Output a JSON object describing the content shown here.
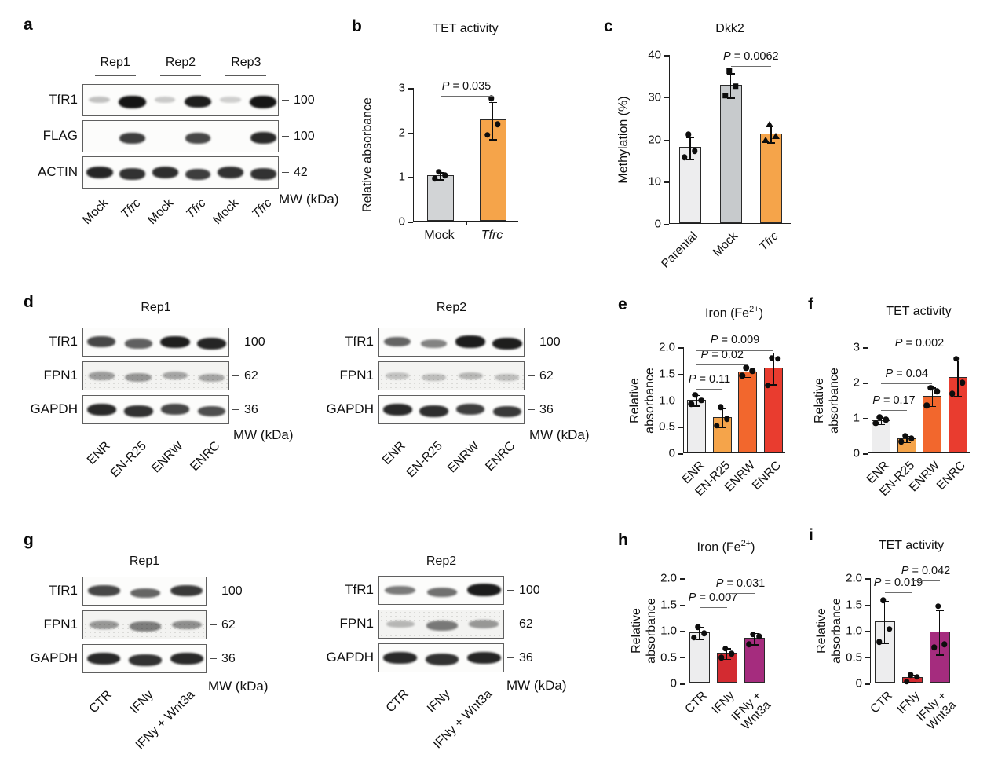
{
  "panels": {
    "a": "a",
    "b": "b",
    "c": "c",
    "d": "d",
    "e": "e",
    "f": "f",
    "g": "g",
    "h": "h",
    "i": "i"
  },
  "colors": {
    "bar_light_gray": "#ededee",
    "bar_gray": "#d2d4d6",
    "bar_mid_gray": "#c7cacc",
    "bar_orange": "#f5a44a",
    "bar_dark_orange": "#f2672d",
    "bar_red": "#e93c2f",
    "bar_crimson": "#d32b31",
    "bar_magenta": "#a52c7e"
  },
  "blots": {
    "a": {
      "groups": [
        "Rep1",
        "Rep2",
        "Rep3"
      ],
      "lanes": [
        {
          "label": "Mock",
          "italic": false
        },
        {
          "label": "Tfrc",
          "italic": true
        },
        {
          "label": "Mock",
          "italic": false
        },
        {
          "label": "Tfrc",
          "italic": true
        },
        {
          "label": "Mock",
          "italic": false
        },
        {
          "label": "Tfrc",
          "italic": true
        }
      ],
      "rows": [
        {
          "label": "TfR1",
          "mw": "100",
          "noisy": false,
          "bands": [
            0.15,
            1,
            0.1,
            0.95,
            0.08,
            1
          ]
        },
        {
          "label": "FLAG",
          "mw": "100",
          "noisy": false,
          "bands": [
            0,
            0.8,
            0,
            0.75,
            0,
            0.9
          ]
        },
        {
          "label": "ACTIN",
          "mw": "42",
          "noisy": false,
          "bands": [
            0.92,
            0.85,
            0.88,
            0.8,
            0.85,
            0.85
          ]
        }
      ],
      "mw_label": "MW (kDa)"
    },
    "d1": {
      "title": "Rep1",
      "lanes": [
        {
          "label": "ENR"
        },
        {
          "label": "EN-R25"
        },
        {
          "label": "ENRW"
        },
        {
          "label": "ENRC"
        }
      ],
      "rows": [
        {
          "label": "TfR1",
          "mw": "100",
          "noisy": false,
          "bands": [
            0.75,
            0.62,
            0.95,
            0.92
          ]
        },
        {
          "label": "FPN1",
          "mw": "62",
          "noisy": true,
          "bands": [
            0.42,
            0.46,
            0.36,
            0.36
          ]
        },
        {
          "label": "GAPDH",
          "mw": "36",
          "noisy": false,
          "bands": [
            0.9,
            0.85,
            0.75,
            0.72
          ]
        }
      ],
      "mw_label": "MW (kDa)"
    },
    "d2": {
      "title": "Rep2",
      "lanes": [
        {
          "label": "ENR"
        },
        {
          "label": "EN-R25"
        },
        {
          "label": "ENRW"
        },
        {
          "label": "ENRC"
        }
      ],
      "rows": [
        {
          "label": "TfR1",
          "mw": "100",
          "noisy": false,
          "bands": [
            0.6,
            0.45,
            0.97,
            0.95
          ]
        },
        {
          "label": "FPN1",
          "mw": "62",
          "noisy": true,
          "bands": [
            0.18,
            0.2,
            0.25,
            0.2
          ]
        },
        {
          "label": "GAPDH",
          "mw": "36",
          "noisy": false,
          "bands": [
            0.9,
            0.88,
            0.8,
            0.82
          ]
        }
      ],
      "mw_label": "MW (kDa)"
    },
    "g1": {
      "title": "Rep1",
      "lanes": [
        {
          "label": "CTR"
        },
        {
          "label": "IFNy"
        },
        {
          "label": "IFNy + Wnt3a"
        }
      ],
      "rows": [
        {
          "label": "TfR1",
          "mw": "100",
          "noisy": false,
          "bands": [
            0.75,
            0.6,
            0.82
          ]
        },
        {
          "label": "FPN1",
          "mw": "62",
          "noisy": true,
          "bands": [
            0.45,
            0.62,
            0.5
          ]
        },
        {
          "label": "GAPDH",
          "mw": "36",
          "noisy": false,
          "bands": [
            0.9,
            0.85,
            0.9
          ]
        }
      ],
      "mw_label": "MW (kDa)"
    },
    "g2": {
      "title": "Rep2",
      "lanes": [
        {
          "label": "CTR"
        },
        {
          "label": "IFNy"
        },
        {
          "label": "IFNy + Wnt3a"
        }
      ],
      "rows": [
        {
          "label": "TfR1",
          "mw": "100",
          "noisy": false,
          "bands": [
            0.5,
            0.55,
            0.97
          ]
        },
        {
          "label": "FPN1",
          "mw": "62",
          "noisy": true,
          "bands": [
            0.25,
            0.65,
            0.45
          ]
        },
        {
          "label": "GAPDH",
          "mw": "36",
          "noisy": false,
          "bands": [
            0.9,
            0.85,
            0.92
          ]
        }
      ],
      "mw_label": "MW (kDa)"
    }
  },
  "chart_data": [
    {
      "id": "b",
      "type": "bar",
      "title": "TET activity",
      "ylabel": "Relative absorbance",
      "ylim": [
        0,
        3
      ],
      "yticks": [
        {
          "v": 0,
          "label": "0"
        },
        {
          "v": 1,
          "label": "1"
        },
        {
          "v": 2,
          "label": "2"
        },
        {
          "v": 3,
          "label": "3"
        }
      ],
      "categories": [
        {
          "label": "Mock",
          "italic": false
        },
        {
          "label": "Tfrc",
          "italic": true
        }
      ],
      "values": [
        1.03,
        2.27
      ],
      "errors": [
        0.08,
        0.42
      ],
      "points": [
        [
          0.97,
          1.04,
          1.12
        ],
        [
          1.95,
          2.18,
          2.77
        ]
      ],
      "colors": [
        "#d2d4d6",
        "#f5a44a"
      ],
      "pvalues": [
        {
          "label": "P = 0.035",
          "i1": 0,
          "i2": 1,
          "y": 2.82
        }
      ],
      "rotate_labels": 0,
      "legend": "none",
      "grid": false
    },
    {
      "id": "c",
      "type": "bar",
      "title": "Dkk2",
      "ylabel": "Methylation (%)",
      "ylim": [
        0,
        40
      ],
      "yticks": [
        {
          "v": 0,
          "label": "0"
        },
        {
          "v": 10,
          "label": "10"
        },
        {
          "v": 20,
          "label": "20"
        },
        {
          "v": 30,
          "label": "30"
        },
        {
          "v": 40,
          "label": "40"
        }
      ],
      "categories": [
        {
          "label": "Parental",
          "italic": false
        },
        {
          "label": "Mock",
          "italic": false
        },
        {
          "label": "Tfrc",
          "italic": true
        }
      ],
      "values": [
        18,
        32.8,
        21.3
      ],
      "errors": [
        2.6,
        2.9,
        2.0
      ],
      "points": [
        [
          15.8,
          17.3,
          21.2
        ],
        [
          30.4,
          32.6,
          36.2
        ],
        [
          19.9,
          20.8,
          23.6
        ]
      ],
      "markers": [
        "circle",
        "square",
        "triangle"
      ],
      "colors": [
        "#ededee",
        "#c7cacc",
        "#f5a44a"
      ],
      "pvalues": [
        {
          "label": "P = 0.0062",
          "i1": 1,
          "i2": 2,
          "y": 37.4
        }
      ],
      "rotate_labels": 45,
      "legend": "none",
      "grid": false
    },
    {
      "id": "e",
      "type": "bar",
      "title": "Iron (Fe",
      "title_sup": "2+",
      "title_post": ")",
      "ylabel": "Relative\nabsorbance",
      "ylim": [
        0,
        2
      ],
      "yticks": [
        {
          "v": 0,
          "label": "0"
        },
        {
          "v": 0.5,
          "label": "0.5"
        },
        {
          "v": 1,
          "label": "1.0"
        },
        {
          "v": 1.5,
          "label": "1.5"
        },
        {
          "v": 2,
          "label": "2.0"
        }
      ],
      "categories": [
        {
          "label": "ENR"
        },
        {
          "label": "EN-R25"
        },
        {
          "label": "ENRW"
        },
        {
          "label": "ENRC"
        }
      ],
      "values": [
        1.0,
        0.67,
        1.53,
        1.6
      ],
      "errors": [
        0.1,
        0.18,
        0.09,
        0.3
      ],
      "points": [
        [
          0.93,
          1.0,
          1.1
        ],
        [
          0.52,
          0.65,
          0.87
        ],
        [
          1.46,
          1.55,
          1.61
        ],
        [
          1.28,
          1.78,
          1.8
        ]
      ],
      "colors": [
        "#ededee",
        "#f5a44a",
        "#f2672d",
        "#e93c2f"
      ],
      "pvalues": [
        {
          "label": "P = 0.11",
          "i1": 0,
          "i2": 1,
          "y": 1.22
        },
        {
          "label": "P = 0.02",
          "i1": 0,
          "i2": 2,
          "y": 1.68
        },
        {
          "label": "P = 0.009",
          "i1": 0,
          "i2": 3,
          "y": 1.95
        }
      ],
      "rotate_labels": 45,
      "legend": "none",
      "grid": false
    },
    {
      "id": "f",
      "type": "bar",
      "title": "TET activity",
      "ylabel": "Relative\nabsorbance",
      "ylim": [
        0,
        3
      ],
      "yticks": [
        {
          "v": 0,
          "label": "0"
        },
        {
          "v": 1,
          "label": "1"
        },
        {
          "v": 2,
          "label": "2"
        },
        {
          "v": 3,
          "label": "3"
        }
      ],
      "categories": [
        {
          "label": "ENR"
        },
        {
          "label": "EN-R25"
        },
        {
          "label": "ENRW"
        },
        {
          "label": "ENRC"
        }
      ],
      "values": [
        0.92,
        0.41,
        1.6,
        2.13
      ],
      "errors": [
        0.09,
        0.09,
        0.26,
        0.5
      ],
      "points": [
        [
          0.85,
          0.95,
          1.02
        ],
        [
          0.33,
          0.42,
          0.5
        ],
        [
          1.35,
          1.75,
          1.85
        ],
        [
          1.68,
          2.0,
          2.67
        ]
      ],
      "colors": [
        "#ededee",
        "#f5a44a",
        "#f2672d",
        "#e93c2f"
      ],
      "pvalues": [
        {
          "label": "P = 0.17",
          "i1": 0,
          "i2": 1,
          "y": 1.22
        },
        {
          "label": "P = 0.04",
          "i1": 0,
          "i2": 2,
          "y": 1.98
        },
        {
          "label": "P = 0.002",
          "i1": 0,
          "i2": 3,
          "y": 2.85
        }
      ],
      "rotate_labels": 45,
      "legend": "none",
      "grid": false
    },
    {
      "id": "h",
      "type": "bar",
      "title": "Iron (Fe",
      "title_sup": "2+",
      "title_post": ")",
      "ylabel": "Relative\nabsorbance",
      "ylim": [
        0,
        2
      ],
      "yticks": [
        {
          "v": 0,
          "label": "0"
        },
        {
          "v": 0.5,
          "label": "0.5"
        },
        {
          "v": 1,
          "label": "1.0"
        },
        {
          "v": 1.5,
          "label": "1.5"
        },
        {
          "v": 2,
          "label": "2.0"
        }
      ],
      "categories": [
        {
          "label": "CTR"
        },
        {
          "label": "IFNy"
        },
        {
          "label": "IFNy +\nWnt3a"
        }
      ],
      "values": [
        0.96,
        0.57,
        0.85
      ],
      "errors": [
        0.11,
        0.1,
        0.11
      ],
      "points": [
        [
          0.87,
          0.95,
          1.07
        ],
        [
          0.49,
          0.56,
          0.66
        ],
        [
          0.74,
          0.89,
          0.93
        ]
      ],
      "colors": [
        "#ededee",
        "#d32b31",
        "#a52c7e"
      ],
      "pvalues": [
        {
          "label": "P = 0.007",
          "i1": 0,
          "i2": 1,
          "y": 1.45
        },
        {
          "label": "P = 0.031",
          "i1": 1,
          "i2": 2,
          "y": 1.72
        }
      ],
      "rotate_labels": 45,
      "legend": "none",
      "grid": false
    },
    {
      "id": "i",
      "type": "bar",
      "title": "TET activity",
      "ylabel": "Relative\nabsorbance",
      "ylim": [
        0,
        2
      ],
      "yticks": [
        {
          "v": 0,
          "label": "0"
        },
        {
          "v": 0.5,
          "label": "0.5"
        },
        {
          "v": 1,
          "label": "1.0"
        },
        {
          "v": 1.5,
          "label": "1.5"
        },
        {
          "v": 2,
          "label": "2.0"
        }
      ],
      "categories": [
        {
          "label": "CTR"
        },
        {
          "label": "IFNy"
        },
        {
          "label": "IFNy +\nWnt3a"
        }
      ],
      "values": [
        1.17,
        0.1,
        0.97
      ],
      "errors": [
        0.4,
        0.07,
        0.42
      ],
      "points": [
        [
          0.79,
          1.03,
          1.58
        ],
        [
          0.03,
          0.12,
          0.16
        ],
        [
          0.68,
          0.74,
          1.47
        ]
      ],
      "colors": [
        "#ededee",
        "#d32b31",
        "#a52c7e"
      ],
      "pvalues": [
        {
          "label": "P = 0.019",
          "i1": 0,
          "i2": 1,
          "y": 1.73
        },
        {
          "label": "P = 0.042",
          "i1": 1,
          "i2": 2,
          "y": 1.96
        }
      ],
      "rotate_labels": 45,
      "legend": "none",
      "grid": false
    }
  ]
}
